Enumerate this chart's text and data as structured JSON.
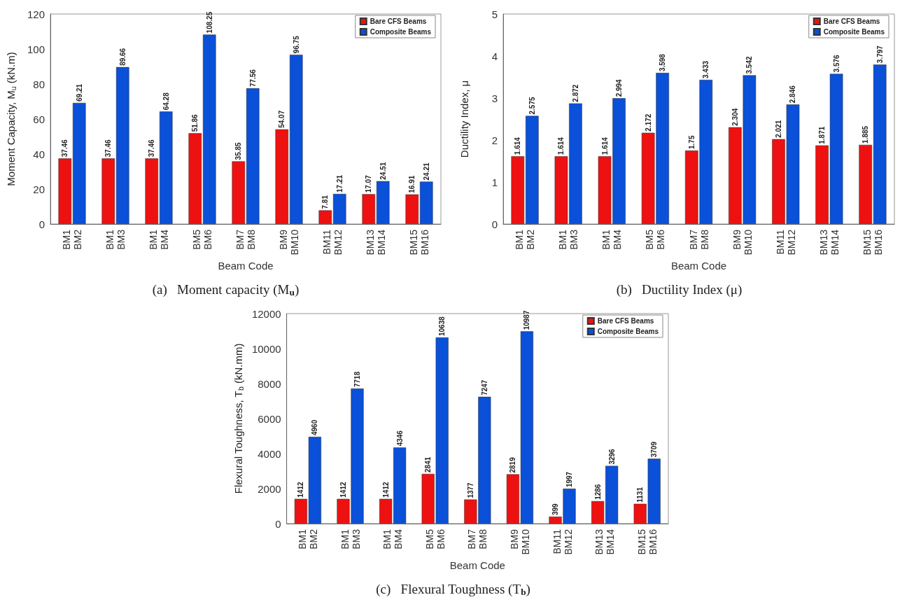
{
  "chart_data": [
    {
      "type": "bar",
      "title": "(a)   Moment capacity (M$_{u}$)",
      "xlabel": "Beam Code",
      "ylabel": "Moment Capacity, M$_{u}$ (kN.m)",
      "categories": [
        "BM1\nBM2",
        "BM1\nBM3",
        "BM1\nBM4",
        "BM5\nBM6",
        "BM7\nBM8",
        "BM9\nBM10",
        "BM11\nBM12",
        "BM13\nBM14",
        "BM15\nBM16"
      ],
      "series": [
        {
          "name": "Bare CFS Beams",
          "color": "#ee1111",
          "values": [
            37.46,
            37.46,
            37.46,
            51.86,
            35.85,
            54.07,
            7.81,
            17.07,
            16.91
          ]
        },
        {
          "name": "Composite Beams",
          "color": "#0a50d8",
          "values": [
            69.21,
            89.66,
            64.28,
            108.25,
            77.56,
            96.75,
            17.21,
            24.51,
            24.21
          ]
        }
      ],
      "ylim": [
        0,
        120
      ],
      "yticks": [
        0,
        20,
        40,
        60,
        80,
        100,
        120
      ],
      "data_labels": true,
      "legend": "top right",
      "grid": false
    },
    {
      "type": "bar",
      "title": "(b)   Ductility Index (μ)",
      "xlabel": "Beam Code",
      "ylabel": "Ductility Index, μ",
      "categories": [
        "BM1\nBM2",
        "BM1\nBM3",
        "BM1\nBM4",
        "BM5\nBM6",
        "BM7\nBM8",
        "BM9\nBM10",
        "BM11\nBM12",
        "BM13\nBM14",
        "BM15\nBM16"
      ],
      "series": [
        {
          "name": "Bare CFS Beams",
          "color": "#ee1111",
          "values": [
            1.614,
            1.614,
            1.614,
            2.172,
            1.75,
            2.304,
            2.021,
            1.871,
            1.885
          ]
        },
        {
          "name": "Composite Beams",
          "color": "#0a50d8",
          "values": [
            2.575,
            2.872,
            2.994,
            3.598,
            3.433,
            3.542,
            2.846,
            3.576,
            3.797
          ]
        }
      ],
      "ylim": [
        0,
        5
      ],
      "yticks": [
        0,
        1,
        2,
        3,
        4,
        5
      ],
      "data_labels": true,
      "legend": "top right",
      "grid": false
    },
    {
      "type": "bar",
      "title": "(c)   Flexural Toughness (T$_{b}$)",
      "xlabel": "Beam Code",
      "ylabel": "Flexural Toughness, T$_{b}$ (kN.mm)",
      "categories": [
        "BM1\nBM2",
        "BM1\nBM3",
        "BM1\nBM4",
        "BM5\nBM6",
        "BM7\nBM8",
        "BM9\nBM10",
        "BM11\nBM12",
        "BM13\nBM14",
        "BM15\nBM16"
      ],
      "series": [
        {
          "name": "Bare CFS Beams",
          "color": "#ee1111",
          "values": [
            1412,
            1412,
            1412,
            2841,
            1377,
            2819,
            399,
            1286,
            1131
          ]
        },
        {
          "name": "Composite Beams",
          "color": "#0a50d8",
          "values": [
            4960,
            7718,
            4346,
            10638,
            7247,
            10987,
            1997,
            3296,
            3709
          ]
        }
      ],
      "ylim": [
        0,
        12000
      ],
      "yticks": [
        0,
        2000,
        4000,
        6000,
        8000,
        10000,
        12000
      ],
      "data_labels": true,
      "legend": "top right",
      "grid": false
    }
  ]
}
